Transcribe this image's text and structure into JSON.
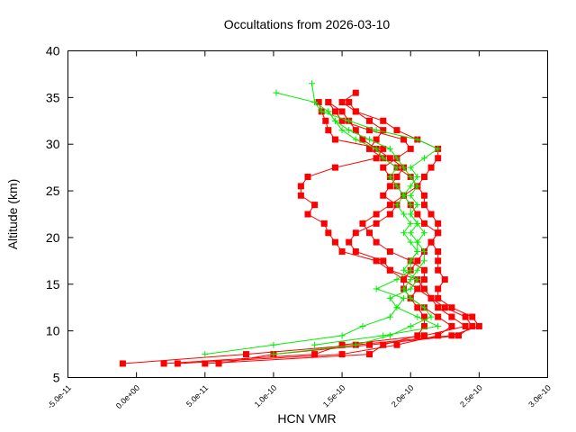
{
  "chart_data": {
    "type": "line",
    "title": "Occultations from 2026-03-10",
    "xlabel": "HCN VMR",
    "ylabel": "Altitude (km)",
    "xlim": [
      -5e-11,
      3e-10
    ],
    "ylim": [
      5,
      40
    ],
    "x_ticks": [
      "-5.0e-11",
      "0.0e+00",
      "5.0e-11",
      "1.0e-10",
      "1.5e-10",
      "2.0e-10",
      "2.5e-10",
      "3.0e-10"
    ],
    "x_tick_values": [
      -5e-11,
      0,
      5e-11,
      1e-10,
      1.5e-10,
      2e-10,
      2.5e-10,
      3e-10
    ],
    "y_ticks": [
      "5",
      "10",
      "15",
      "20",
      "25",
      "30",
      "35",
      "40"
    ],
    "y_tick_values": [
      5,
      10,
      15,
      20,
      25,
      30,
      35,
      40
    ],
    "grid": false,
    "legend": "none",
    "x_unit_scale": 1e-10,
    "series": [
      {
        "color": "#ff0000",
        "marker": "square",
        "alt": [
          6.5,
          7.5,
          8.5,
          9.5,
          10.5,
          11.5,
          12.5,
          13.5,
          14.5,
          15.5,
          16.5,
          17.5,
          18.5,
          19.5,
          20.5,
          21.5,
          22.5,
          23.5,
          24.5,
          25.5,
          26.5,
          27.5,
          28.5,
          29.5,
          30.5,
          31.5,
          32.5,
          33.5,
          34.5
        ],
        "x": [
          0.2,
          1.3,
          1.5,
          2.1,
          2.4,
          2.3,
          2.2,
          2.15,
          2.1,
          2.05,
          1.85,
          1.75,
          1.5,
          1.45,
          1.4,
          1.37,
          1.25,
          1.3,
          1.2,
          1.2,
          1.25,
          1.45,
          1.75,
          1.8,
          1.45,
          1.4,
          1.38,
          1.35,
          1.33
        ]
      },
      {
        "color": "#ff0000",
        "marker": "square",
        "alt": [
          6.5,
          7.5,
          8.5,
          9.5,
          10.5,
          11.5,
          12.5,
          13.5,
          14.5,
          15.5,
          16.5,
          17.5,
          18.5,
          19.5,
          20.5,
          21.5,
          22.5,
          23.5,
          24.5,
          25.5,
          26.5,
          27.5,
          28.5,
          29.5,
          30.5,
          31.5,
          32.5,
          33.5,
          34.5,
          35.5
        ],
        "x": [
          -0.1,
          0.8,
          1.6,
          2.3,
          2.5,
          2.45,
          2.3,
          2.2,
          2.2,
          2.25,
          2.2,
          2.2,
          2.2,
          2.15,
          2.2,
          2.2,
          2.15,
          2.1,
          2.1,
          2.05,
          2.1,
          2.15,
          2.2,
          2.2,
          2.05,
          1.9,
          1.8,
          1.6,
          1.5,
          1.6
        ]
      },
      {
        "color": "#ff0000",
        "marker": "square",
        "alt": [
          6.5,
          7.5,
          8.5,
          9.5,
          10.5,
          11.5,
          12.5,
          13.5,
          14.5,
          15.5,
          16.5,
          17.5,
          18.5,
          19.5,
          20.5,
          21.5,
          22.5,
          23.5,
          24.5,
          25.5,
          26.5,
          27.5,
          28.5,
          29.5,
          30.5,
          31.5,
          32.5,
          33.5,
          34.5
        ],
        "x": [
          0.6,
          1.0,
          1.7,
          2.35,
          2.45,
          2.4,
          2.25,
          2.15,
          2.05,
          1.95,
          1.85,
          1.8,
          1.6,
          1.55,
          1.6,
          1.75,
          1.85,
          1.9,
          1.8,
          1.85,
          1.9,
          1.95,
          1.85,
          1.75,
          1.65,
          1.6,
          1.55,
          1.5,
          1.4
        ]
      },
      {
        "color": "#ff0000",
        "marker": "square",
        "alt": [
          6.5,
          7.5,
          8.5,
          9.5,
          10.5,
          11.5,
          12.5,
          13.5,
          14.5,
          15.5,
          16.5,
          17.5,
          18.5,
          19.5,
          20.5,
          21.5,
          22.5,
          23.5,
          24.5,
          25.5,
          26.5,
          27.5,
          28.5,
          29.5,
          30.5,
          31.5,
          32.5,
          33.5,
          34.5
        ],
        "x": [
          0.3,
          1.5,
          1.9,
          2.2,
          2.3,
          2.2,
          2.1,
          2.0,
          2.05,
          2.1,
          2.1,
          2.0,
          1.85,
          1.75,
          1.7,
          1.65,
          1.75,
          1.85,
          1.95,
          2.05,
          2.0,
          1.9,
          1.8,
          1.7,
          1.75,
          1.8,
          1.7,
          1.6,
          1.55
        ]
      },
      {
        "color": "#ff0000",
        "marker": "square",
        "alt": [
          6.5,
          7.5,
          8.5,
          9.5,
          10.5,
          11.5,
          12.5,
          13.5,
          14.5,
          15.5,
          16.5,
          17.5,
          18.5,
          19.5,
          20.5,
          21.5,
          22.5,
          23.5,
          24.5,
          25.5,
          26.5,
          27.5,
          28.5,
          29.5,
          30.5,
          31.5,
          32.5,
          33.5,
          34.5
        ],
        "x": [
          0.5,
          1.7,
          1.8,
          2.05,
          2.1,
          2.1,
          2.05,
          2.0,
          1.95,
          1.95,
          2.0,
          2.05,
          2.1,
          2.15,
          2.2,
          2.1,
          2.05,
          2.0,
          1.95,
          1.9,
          1.85,
          1.8,
          1.9,
          2.0,
          1.95,
          1.7,
          1.5,
          1.45,
          1.4
        ]
      },
      {
        "color": "#00ee00",
        "marker": "plus",
        "alt": [
          7.5,
          8.5,
          9.5,
          10.5,
          11.5,
          12.5,
          13.5,
          14.5,
          15.5,
          16.5,
          17.5,
          18.5,
          19.5,
          20.5,
          21.5,
          22.5,
          23.5,
          24.5,
          25.5,
          26.5,
          27.5,
          28.5,
          29.5,
          30.5,
          31.5,
          32.5,
          33.5,
          34.5,
          35.5
        ],
        "x": [
          0.5,
          1.0,
          1.5,
          1.65,
          1.85,
          1.9,
          1.95,
          1.75,
          1.9,
          2.0,
          2.0,
          2.05,
          2.05,
          2.0,
          2.05,
          2.0,
          2.05,
          2.0,
          2.05,
          2.0,
          1.95,
          1.9,
          1.85,
          1.7,
          1.55,
          1.45,
          1.4,
          1.3,
          1.02
        ]
      },
      {
        "color": "#00ee00",
        "marker": "plus",
        "alt": [
          7.5,
          8.5,
          9.5,
          10.5,
          11.5,
          12.5,
          13.5,
          14.5,
          15.5,
          16.5,
          17.5,
          18.5,
          19.5,
          20.5,
          21.5,
          22.5,
          23.5,
          24.5,
          25.5,
          26.5,
          27.5,
          28.5,
          29.5,
          30.5,
          31.5,
          32.5,
          33.5,
          34.5,
          36.5
        ],
        "x": [
          1.0,
          1.6,
          1.85,
          2.0,
          2.15,
          2.1,
          2.0,
          1.95,
          2.0,
          2.05,
          2.1,
          2.1,
          2.05,
          2.1,
          2.05,
          2.0,
          2.0,
          1.95,
          2.0,
          2.05,
          2.0,
          2.1,
          2.2,
          2.05,
          1.75,
          1.55,
          1.35,
          1.3,
          1.28
        ]
      },
      {
        "color": "#00ee00",
        "marker": "plus",
        "alt": [
          8.5,
          9.5,
          10.5,
          11.5,
          12.5,
          13.5,
          14.5,
          15.5,
          16.5,
          17.5,
          18.5,
          19.5,
          20.5,
          21.5,
          22.5,
          23.5,
          24.5,
          25.5,
          26.5,
          27.5,
          28.5,
          29.5,
          30.5,
          31.5,
          32.5,
          33.5
        ],
        "x": [
          1.3,
          1.8,
          2.2,
          2.05,
          1.9,
          1.85,
          2.0,
          2.05,
          1.95,
          2.0,
          2.05,
          2.0,
          1.95,
          2.0,
          1.95,
          1.9,
          1.95,
          1.9,
          1.85,
          1.9,
          1.8,
          1.75,
          1.6,
          1.5,
          1.45,
          1.4
        ]
      }
    ]
  }
}
